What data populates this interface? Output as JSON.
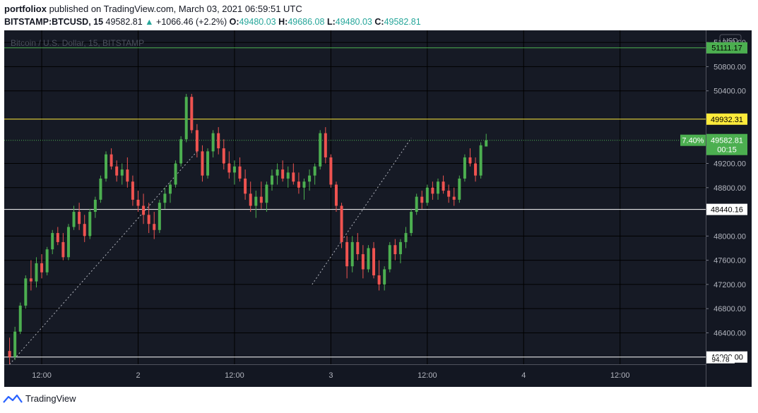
{
  "header": {
    "author": "portfoliox",
    "published_text": "published on TradingView.com, March 03, 2021 06:59:51 UTC",
    "symbol": "BITSTAMP:BTCUSD, 15",
    "last": "49582.81",
    "change": "+1066.46 (+2.2%)",
    "o_label": "O:",
    "o_value": "49480.03",
    "h_label": "H:",
    "h_value": "49686.08",
    "l_label": "L:",
    "l_value": "49480.03",
    "c_label": "C:",
    "c_value": "49582.81"
  },
  "footer": {
    "brand": "TradingView"
  },
  "chart_data": {
    "type": "candlestick",
    "title": "Bitcoin / U.S. Dollar, 15, BITSTAMP",
    "currency": "USD",
    "ylim": [
      45880,
      51400
    ],
    "y_ticks": [
      "51200.00",
      "50800.00",
      "50400.00",
      "49200.00",
      "48800.00",
      "48000.00",
      "47600.00",
      "47200.00",
      "46800.00",
      "46400.00"
    ],
    "x_ticks": [
      "12:00",
      "2",
      "12:00",
      "3",
      "12:00",
      "4",
      "12:00"
    ],
    "x_tick_positions": [
      6,
      24,
      42,
      60,
      78,
      96,
      114
    ],
    "x_range": [
      -1,
      130
    ],
    "hlines": [
      {
        "value": 51111.17,
        "label": "51111.17",
        "color": "#4caf50",
        "label_bg": "#4caf50",
        "label_color": "#000000"
      },
      {
        "value": 49932.31,
        "label": "49932.31",
        "color": "#ffeb3b",
        "label_bg": "#ffeb3b",
        "label_color": "#000000"
      },
      {
        "value": 48440.16,
        "label": "48440.16",
        "color": "#ffffff",
        "label_bg": "#ffffff",
        "label_color": "#000000"
      },
      {
        "value": 46000,
        "label": "46000.00",
        "color": "#ffffff",
        "label_bg": "#ffffff",
        "label_color": "#000000",
        "extra_label": "94.78"
      }
    ],
    "last_price": {
      "value": 49582.81,
      "label": "49582.81",
      "countdown": "00:15",
      "percent": "7.40%"
    },
    "trendlines": [
      {
        "from": [
          0,
          45880
        ],
        "to": [
          35,
          49400
        ]
      },
      {
        "from": [
          56.5,
          47200
        ],
        "to": [
          75,
          49620
        ]
      }
    ],
    "up_color": "#4caf50",
    "down_color": "#ef5350",
    "ohlc": [
      [
        46100,
        46320,
        45880,
        46000
      ],
      [
        46000,
        46500,
        45950,
        46420
      ],
      [
        46420,
        46900,
        46380,
        46850
      ],
      [
        46850,
        47350,
        46800,
        47300
      ],
      [
        47300,
        47600,
        47100,
        47250
      ],
      [
        47250,
        47650,
        47150,
        47550
      ],
      [
        47550,
        47700,
        47300,
        47400
      ],
      [
        47400,
        47820,
        47350,
        47780
      ],
      [
        47780,
        48100,
        47700,
        48050
      ],
      [
        48050,
        48150,
        47850,
        47900
      ],
      [
        47900,
        48050,
        47600,
        47650
      ],
      [
        47650,
        48200,
        47600,
        48150
      ],
      [
        48150,
        48500,
        48100,
        48400
      ],
      [
        48400,
        48550,
        48100,
        48200
      ],
      [
        48200,
        48350,
        47900,
        48000
      ],
      [
        48000,
        48450,
        47950,
        48400
      ],
      [
        48400,
        48650,
        48300,
        48600
      ],
      [
        48600,
        49000,
        48550,
        48950
      ],
      [
        48950,
        49400,
        48900,
        49350
      ],
      [
        49350,
        49450,
        49100,
        49150
      ],
      [
        49150,
        49250,
        48900,
        49000
      ],
      [
        49000,
        49200,
        48850,
        49100
      ],
      [
        49100,
        49300,
        48800,
        48900
      ],
      [
        48900,
        49000,
        48500,
        48600
      ],
      [
        48600,
        48750,
        48400,
        48500
      ],
      [
        48500,
        48700,
        48200,
        48350
      ],
      [
        48350,
        48550,
        48050,
        48200
      ],
      [
        48200,
        48400,
        47950,
        48100
      ],
      [
        48100,
        48600,
        48050,
        48550
      ],
      [
        48550,
        48800,
        48450,
        48700
      ],
      [
        48700,
        48900,
        48550,
        48850
      ],
      [
        48850,
        49250,
        48800,
        49200
      ],
      [
        49200,
        49650,
        49150,
        49600
      ],
      [
        49600,
        50350,
        49550,
        50300
      ],
      [
        50300,
        50350,
        49700,
        49750
      ],
      [
        49750,
        49850,
        49300,
        49400
      ],
      [
        49400,
        49500,
        48900,
        49000
      ],
      [
        49000,
        49450,
        48950,
        49400
      ],
      [
        49400,
        49750,
        49300,
        49700
      ],
      [
        49700,
        49800,
        49350,
        49450
      ],
      [
        49450,
        49600,
        49100,
        49200
      ],
      [
        49200,
        49400,
        48950,
        49050
      ],
      [
        49050,
        49250,
        48850,
        49150
      ],
      [
        49150,
        49300,
        48900,
        48950
      ],
      [
        48950,
        49100,
        48600,
        48700
      ],
      [
        48700,
        48900,
        48400,
        48500
      ],
      [
        48500,
        48750,
        48300,
        48650
      ],
      [
        48650,
        48900,
        48450,
        48550
      ],
      [
        48550,
        48900,
        48400,
        48850
      ],
      [
        48850,
        49100,
        48750,
        49000
      ],
      [
        49000,
        49200,
        48850,
        49100
      ],
      [
        49100,
        49250,
        48900,
        48950
      ],
      [
        48950,
        49150,
        48800,
        49050
      ],
      [
        49050,
        49200,
        48850,
        48900
      ],
      [
        48900,
        49050,
        48700,
        48800
      ],
      [
        48800,
        48950,
        48600,
        48900
      ],
      [
        48900,
        49100,
        48750,
        49000
      ],
      [
        49000,
        49200,
        48850,
        49150
      ],
      [
        49150,
        49750,
        49100,
        49700
      ],
      [
        49700,
        49800,
        49200,
        49300
      ],
      [
        49300,
        49350,
        48800,
        48850
      ],
      [
        48850,
        48900,
        48400,
        48500
      ],
      [
        48500,
        48550,
        47800,
        47900
      ],
      [
        47900,
        48000,
        47300,
        47500
      ],
      [
        47500,
        48000,
        47400,
        47900
      ],
      [
        47900,
        48050,
        47600,
        47700
      ],
      [
        47700,
        47850,
        47300,
        47450
      ],
      [
        47450,
        47850,
        47400,
        47800
      ],
      [
        47800,
        47900,
        47300,
        47350
      ],
      [
        47350,
        47600,
        47100,
        47200
      ],
      [
        47200,
        47500,
        47100,
        47450
      ],
      [
        47450,
        47900,
        47400,
        47850
      ],
      [
        47850,
        47950,
        47600,
        47700
      ],
      [
        47700,
        47950,
        47550,
        47900
      ],
      [
        47900,
        48150,
        47800,
        48050
      ],
      [
        48050,
        48450,
        48000,
        48400
      ],
      [
        48400,
        48700,
        48350,
        48650
      ],
      [
        48650,
        48750,
        48450,
        48550
      ],
      [
        48550,
        48850,
        48500,
        48800
      ],
      [
        48800,
        48900,
        48600,
        48700
      ],
      [
        48700,
        48950,
        48600,
        48900
      ],
      [
        48900,
        49000,
        48700,
        48750
      ],
      [
        48750,
        48850,
        48550,
        48650
      ],
      [
        48650,
        48800,
        48500,
        48600
      ],
      [
        48600,
        49000,
        48550,
        48950
      ],
      [
        48950,
        49350,
        48900,
        49300
      ],
      [
        49300,
        49450,
        49150,
        49200
      ],
      [
        49200,
        49300,
        48900,
        49000
      ],
      [
        49000,
        49550,
        48950,
        49500
      ],
      [
        49480,
        49690,
        49480,
        49583
      ]
    ]
  }
}
